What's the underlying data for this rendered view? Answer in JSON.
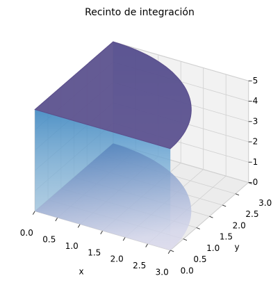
{
  "chart_data": {
    "type": "surface3d",
    "title": "Recinto de integración",
    "xlabel": "x",
    "ylabel": "y",
    "xlim": [
      0,
      3
    ],
    "ylim": [
      0,
      3
    ],
    "zlim": [
      0,
      5
    ],
    "xticks": [
      {
        "value": 0,
        "label": "0.0"
      },
      {
        "value": 0.5,
        "label": "0.5"
      },
      {
        "value": 1,
        "label": "1.0"
      },
      {
        "value": 1.5,
        "label": "1.5"
      },
      {
        "value": 2,
        "label": "2.0"
      },
      {
        "value": 2.5,
        "label": "2.5"
      },
      {
        "value": 3,
        "label": "3.0"
      }
    ],
    "yticks": [
      {
        "value": 0,
        "label": "0.0"
      },
      {
        "value": 0.5,
        "label": "0.5"
      },
      {
        "value": 1,
        "label": "1.0"
      },
      {
        "value": 1.5,
        "label": "1.5"
      },
      {
        "value": 2,
        "label": "2.0"
      },
      {
        "value": 2.5,
        "label": "2.5"
      },
      {
        "value": 3,
        "label": "3.0"
      }
    ],
    "zticks": [
      0,
      1,
      2,
      3,
      4,
      5
    ],
    "radius": 3,
    "z_bottom": 0,
    "z_top": 5,
    "top_color": "#5b4e8c",
    "wall_color": "#3d8fc9",
    "bottom_color": "#4a5a9c",
    "grid": true
  }
}
